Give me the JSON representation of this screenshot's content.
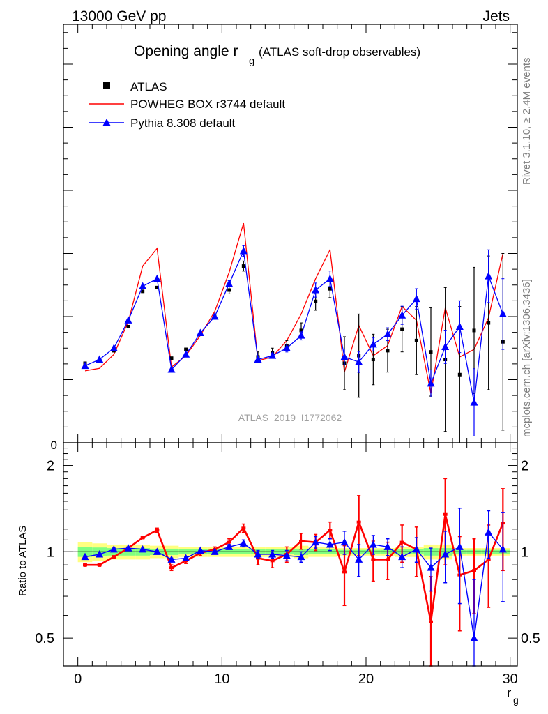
{
  "header": {
    "left": "13000 GeV pp",
    "right": "Jets",
    "side_top": "Rivet 3.1.10, ≥ 2.4M events",
    "side_bottom": "mcplots.cern.ch [arXiv:1306.3436]"
  },
  "chart_data": [
    {
      "type": "line",
      "title_main": "Opening angle r",
      "title_sub": "g",
      "title_note": "(ATLAS soft-drop observables)",
      "analysis_label": "ATLAS_2019_I1772062",
      "y_zero_tick": "0",
      "xlim": [
        -1,
        30.5
      ],
      "legend": {
        "placement": "top-left",
        "entries": [
          "ATLAS",
          "POWHEG BOX r3744 default",
          "Pythia 8.308 default"
        ]
      },
      "x": [
        0.5,
        1.5,
        2.5,
        3.5,
        4.5,
        5.5,
        6.5,
        7.5,
        8.5,
        9.5,
        10.5,
        11.5,
        12.5,
        13.5,
        14.5,
        15.5,
        16.5,
        17.5,
        18.5,
        19.5,
        20.5,
        21.5,
        22.5,
        23.5,
        24.5,
        25.5,
        26.5,
        27.5,
        28.5,
        29.5
      ],
      "series": [
        {
          "name": "ATLAS",
          "color": "#000000",
          "values": [
            0.63,
            0.66,
            0.73,
            0.92,
            1.2,
            1.23,
            0.67,
            0.74,
            0.86,
            1.0,
            1.21,
            1.4,
            0.68,
            0.71,
            0.77,
            0.89,
            1.12,
            1.22,
            0.63,
            0.69,
            0.66,
            0.73,
            0.9,
            0.81,
            0.72,
            0.66,
            0.54,
            0.89,
            0.95,
            0.8
          ],
          "errors": [
            0.01,
            0.01,
            0.01,
            0.01,
            0.01,
            0.01,
            0.01,
            0.01,
            0.01,
            0.02,
            0.03,
            0.04,
            0.04,
            0.04,
            0.04,
            0.06,
            0.07,
            0.07,
            0.21,
            0.33,
            0.2,
            0.17,
            0.18,
            0.27,
            0.35,
            0.57,
            0.54,
            0.5,
            0.53,
            0.7
          ]
        },
        {
          "name": "POWHEG BOX r3744 default",
          "color": "#ff0000",
          "values": [
            0.57,
            0.59,
            0.7,
            0.96,
            1.4,
            1.54,
            0.6,
            0.69,
            0.85,
            1.04,
            1.35,
            1.74,
            0.65,
            0.68,
            0.81,
            1.02,
            1.3,
            1.53,
            0.56,
            0.93,
            0.69,
            0.77,
            1.08,
            0.97,
            0.39,
            1.07,
            0.68,
            0.74,
            0.99,
            1.5
          ]
        },
        {
          "name": "Pythia 8.308 default",
          "color": "#0000ff",
          "values": [
            0.61,
            0.66,
            0.75,
            0.97,
            1.24,
            1.3,
            0.58,
            0.7,
            0.87,
            1.0,
            1.26,
            1.52,
            0.66,
            0.69,
            0.75,
            0.85,
            1.21,
            1.3,
            0.68,
            0.64,
            0.78,
            0.86,
            1.01,
            1.14,
            0.47,
            0.76,
            0.92,
            0.32,
            1.32,
            1.02
          ]
        }
      ]
    },
    {
      "type": "line",
      "ylabel": "Ratio to ATLAS",
      "xlabel_main": "r",
      "xlabel_sub": "g",
      "xlim": [
        -1,
        30.5
      ],
      "ylim": [
        0.4,
        2.4
      ],
      "x_ticks": [
        "0",
        "10",
        "20",
        "30"
      ],
      "y_ticks": [
        "0.5",
        "1",
        "2"
      ],
      "band_colors": [
        "#ffff80",
        "#80ff80"
      ],
      "x": [
        0.5,
        1.5,
        2.5,
        3.5,
        4.5,
        5.5,
        6.5,
        7.5,
        8.5,
        9.5,
        10.5,
        11.5,
        12.5,
        13.5,
        14.5,
        15.5,
        16.5,
        17.5,
        18.5,
        19.5,
        20.5,
        21.5,
        22.5,
        23.5,
        24.5,
        25.5,
        26.5,
        27.5,
        28.5,
        29.5
      ],
      "series": [
        {
          "name": "POWHEG BOX r3744 default",
          "color": "#ff0000",
          "values": [
            0.9,
            0.9,
            0.96,
            1.03,
            1.12,
            1.19,
            0.88,
            0.93,
            0.99,
            1.02,
            1.08,
            1.21,
            0.95,
            0.93,
            0.98,
            1.09,
            1.08,
            1.19,
            0.85,
            1.27,
            0.94,
            0.94,
            1.08,
            1.02,
            0.57,
            1.35,
            0.83,
            0.86,
            0.94,
            1.26
          ],
          "errors": [
            0.01,
            0.01,
            0.01,
            0.01,
            0.01,
            0.02,
            0.02,
            0.02,
            0.02,
            0.02,
            0.03,
            0.04,
            0.05,
            0.05,
            0.06,
            0.07,
            0.07,
            0.08,
            0.2,
            0.3,
            0.15,
            0.14,
            0.16,
            0.2,
            0.25,
            0.45,
            0.3,
            0.25,
            0.3,
            0.4
          ]
        },
        {
          "name": "Pythia 8.308 default",
          "color": "#0000ff",
          "values": [
            0.96,
            0.98,
            1.02,
            1.03,
            1.02,
            1.0,
            0.94,
            0.95,
            1.01,
            1.0,
            1.04,
            1.07,
            0.98,
            0.98,
            0.97,
            0.96,
            1.08,
            1.06,
            1.08,
            0.94,
            1.06,
            1.04,
            0.96,
            1.02,
            0.88,
            0.98,
            1.04,
            0.5,
            1.17,
            1.02
          ],
          "errors": [
            0.01,
            0.01,
            0.01,
            0.01,
            0.01,
            0.01,
            0.01,
            0.01,
            0.01,
            0.01,
            0.02,
            0.03,
            0.03,
            0.03,
            0.04,
            0.04,
            0.05,
            0.05,
            0.1,
            0.12,
            0.08,
            0.07,
            0.08,
            0.1,
            0.15,
            0.2,
            0.38,
            0.3,
            0.22,
            0.35
          ]
        }
      ],
      "band_yellow": [
        0.08,
        0.07,
        0.06,
        0.06,
        0.06,
        0.05,
        0.05,
        0.04,
        0.04,
        0.04,
        0.04,
        0.04,
        0.04,
        0.04,
        0.04,
        0.05,
        0.04,
        0.04,
        0.03,
        0.03,
        0.03,
        0.03,
        0.04,
        0.04,
        0.06,
        0.06,
        0.03,
        0.03,
        0.03,
        0.03
      ],
      "band_green": [
        0.04,
        0.035,
        0.03,
        0.03,
        0.03,
        0.025,
        0.025,
        0.02,
        0.02,
        0.02,
        0.02,
        0.02,
        0.02,
        0.02,
        0.02,
        0.025,
        0.02,
        0.02,
        0.015,
        0.015,
        0.015,
        0.015,
        0.02,
        0.02,
        0.03,
        0.03,
        0.015,
        0.015,
        0.015,
        0.015
      ]
    }
  ]
}
